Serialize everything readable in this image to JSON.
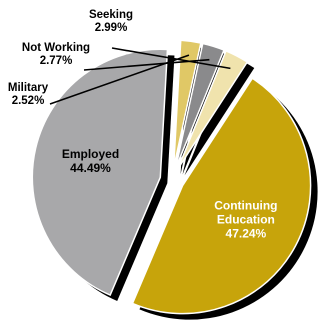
{
  "chart_data": {
    "type": "pie",
    "title": "",
    "series": [
      {
        "values": [
          {
            "label": "Continuing Education",
            "value": 47.24,
            "display": "47.24%",
            "color": "#c7a40b"
          },
          {
            "label": "Employed",
            "value": 44.49,
            "display": "44.49%",
            "color": "#a8a8aa"
          },
          {
            "label": "Military",
            "value": 2.52,
            "display": "2.52%",
            "color": "#e0c866"
          },
          {
            "label": "Not Working",
            "value": 2.77,
            "display": "2.77%",
            "color": "#8a8a8c"
          },
          {
            "label": "Seeking",
            "value": 2.99,
            "display": "2.99%",
            "color": "#f0e3ad"
          }
        ]
      }
    ],
    "exploded": true,
    "shadow": true,
    "legend": "none",
    "label_colors": {
      "Continuing Education": "#ffffff",
      "Employed": "#000000",
      "Military": "#000000",
      "Not Working": "#000000",
      "Seeking": "#000000"
    }
  }
}
